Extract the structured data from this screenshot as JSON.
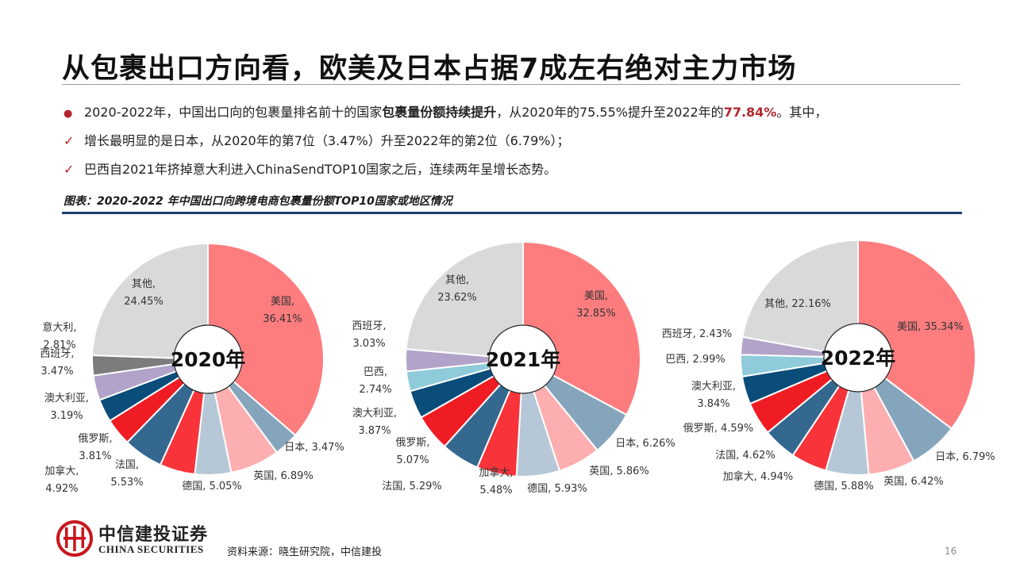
{
  "slide": {
    "title": "从包裹出口方向看，欧美及日本占据7成左右绝对主力市场",
    "bullets": [
      {
        "marker": "●",
        "segments": [
          {
            "text": "2020-2022年，中国出口向的包裹量排名前十的国家",
            "style": "normal"
          },
          {
            "text": "包裹量份额持续提升",
            "style": "bold"
          },
          {
            "text": "，从2020年的75.55%提升至2022年的",
            "style": "normal"
          },
          {
            "text": "77.84%",
            "style": "highlight"
          },
          {
            "text": "。其中，",
            "style": "normal"
          }
        ]
      },
      {
        "marker": "✓",
        "segments": [
          {
            "text": "增长最明显的是日本，从2020年的第7位（3.47%）升至2022年的第2位（6.79%）；",
            "style": "normal"
          }
        ]
      },
      {
        "marker": "✓",
        "segments": [
          {
            "text": "巴西自2021年挤掉意大利进入ChinaSendTOP10国家之后，连续两年呈增长态势。",
            "style": "normal"
          }
        ]
      }
    ],
    "figure_title": "图表：2020-2022 年中国出口向跨境电商包裹量份额TOP10国家或地区情况",
    "source": "资料来源：晓生研究院，中信建投",
    "page_number": "16",
    "brand": {
      "name_cn": "中信建投证券",
      "name_en": "CHINA SECURITIES"
    },
    "colors": {
      "accent_red": "#b3262c",
      "rule_blue": "#1f3e6e"
    }
  },
  "chart_data": [
    {
      "type": "pie",
      "title": "2020年",
      "slices": [
        {
          "label": "美国",
          "value": 36.41,
          "color": "#fd7d7f",
          "text": "美国,\n36.41%"
        },
        {
          "label": "日本",
          "value": 3.47,
          "color": "#85a5bc",
          "text": "日本, 3.47%"
        },
        {
          "label": "英国",
          "value": 6.89,
          "color": "#fdaeb0",
          "text": "英国, 6.89%"
        },
        {
          "label": "德国",
          "value": 5.05,
          "color": "#b6c8d7",
          "text": "德国, 5.05%"
        },
        {
          "label": "加拿大",
          "value": 4.92,
          "color": "#f8343a",
          "text": "加拿大,\n4.92%"
        },
        {
          "label": "法国",
          "value": 5.53,
          "color": "#34688f",
          "text": "法国,\n5.53%"
        },
        {
          "label": "俄罗斯",
          "value": 3.81,
          "color": "#ef1d23",
          "text": "俄罗斯,\n3.81%"
        },
        {
          "label": "澳大利亚",
          "value": 3.19,
          "color": "#0a4c7a",
          "text": "澳大利亚,\n3.19%"
        },
        {
          "label": "西班牙",
          "value": 3.47,
          "color": "#b1a3c9",
          "text": "西班牙,\n3.47%"
        },
        {
          "label": "意大利",
          "value": 2.81,
          "color": "#7c7c7c",
          "text": "意大利,\n2.81%"
        },
        {
          "label": "其他",
          "value": 24.45,
          "color": "#d9d9d9",
          "text": "其他,\n24.45%"
        }
      ]
    },
    {
      "type": "pie",
      "title": "2021年",
      "slices": [
        {
          "label": "美国",
          "value": 32.85,
          "color": "#fd7d7f",
          "text": "美国,\n32.85%"
        },
        {
          "label": "日本",
          "value": 6.26,
          "color": "#85a5bc",
          "text": "日本, 6.26%"
        },
        {
          "label": "英国",
          "value": 5.86,
          "color": "#fdaeb0",
          "text": "英国, 5.86%"
        },
        {
          "label": "德国",
          "value": 5.93,
          "color": "#b6c8d7",
          "text": "德国, 5.93%"
        },
        {
          "label": "加拿大",
          "value": 5.48,
          "color": "#f8343a",
          "text": "加拿大,\n5.48%"
        },
        {
          "label": "法国",
          "value": 5.29,
          "color": "#34688f",
          "text": "法国, 5.29%"
        },
        {
          "label": "俄罗斯",
          "value": 5.07,
          "color": "#ef1d23",
          "text": "俄罗斯,\n5.07%"
        },
        {
          "label": "澳大利亚",
          "value": 3.87,
          "color": "#0a4c7a",
          "text": "澳大利亚,\n3.87%"
        },
        {
          "label": "巴西",
          "value": 2.74,
          "color": "#8fcbdb",
          "text": "巴西,\n2.74%"
        },
        {
          "label": "西班牙",
          "value": 3.03,
          "color": "#b1a3c9",
          "text": "西班牙,\n3.03%"
        },
        {
          "label": "其他",
          "value": 23.62,
          "color": "#d9d9d9",
          "text": "其他,\n23.62%"
        }
      ]
    },
    {
      "type": "pie",
      "title": "2022年",
      "slices": [
        {
          "label": "美国",
          "value": 35.34,
          "color": "#fd7d7f",
          "text": "美国, 35.34%"
        },
        {
          "label": "日本",
          "value": 6.79,
          "color": "#85a5bc",
          "text": "日本, 6.79%"
        },
        {
          "label": "英国",
          "value": 6.42,
          "color": "#fdaeb0",
          "text": "英国, 6.42%"
        },
        {
          "label": "德国",
          "value": 5.88,
          "color": "#b6c8d7",
          "text": "德国, 5.88%"
        },
        {
          "label": "加拿大",
          "value": 4.94,
          "color": "#f8343a",
          "text": "加拿大, 4.94%"
        },
        {
          "label": "法国",
          "value": 4.62,
          "color": "#34688f",
          "text": "法国, 4.62%"
        },
        {
          "label": "俄罗斯",
          "value": 4.59,
          "color": "#ef1d23",
          "text": "俄罗斯, 4.59%"
        },
        {
          "label": "澳大利亚",
          "value": 3.84,
          "color": "#0a4c7a",
          "text": "澳大利亚,\n3.84%"
        },
        {
          "label": "巴西",
          "value": 2.99,
          "color": "#8fcbdb",
          "text": "巴西, 2.99%"
        },
        {
          "label": "西班牙",
          "value": 2.43,
          "color": "#b1a3c9",
          "text": "西班牙, 2.43%"
        },
        {
          "label": "其他",
          "value": 22.16,
          "color": "#d9d9d9",
          "text": "其他, 22.16%"
        }
      ]
    }
  ]
}
